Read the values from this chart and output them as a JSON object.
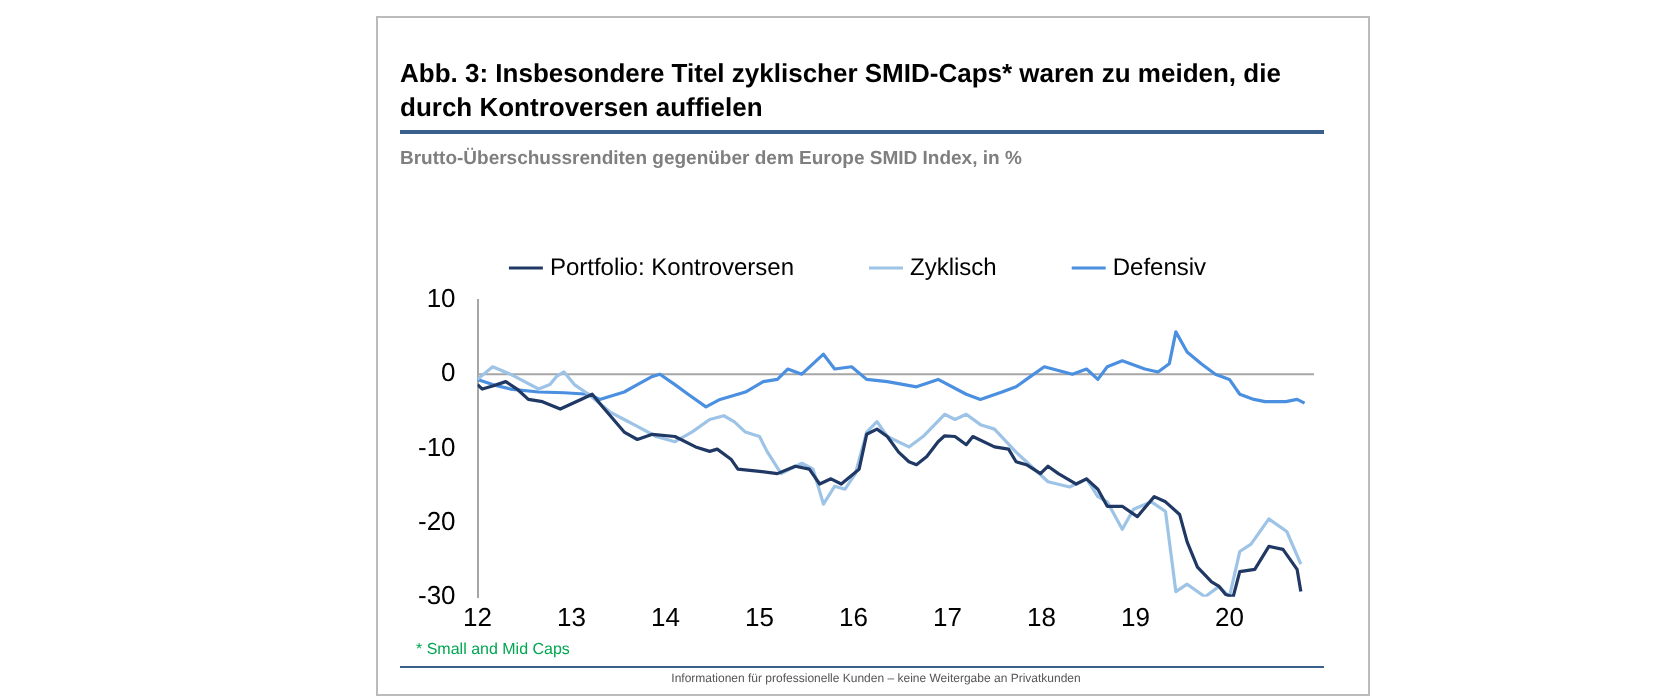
{
  "chart_data": {
    "type": "line",
    "title": "Abb. 3: Insbesondere Titel zyklischer SMID-Caps* waren zu meiden, die durch Kontroversen auffielen",
    "subtitle": "Brutto-Überschussrenditen gegenüber dem Europe SMID Index, in %",
    "annotations": [
      "* Small and Mid Caps",
      "Informationen für professionelle Kunden – keine Weitergabe an Privatkunden"
    ],
    "xlim": [
      12,
      20.9
    ],
    "xticks": [
      12,
      13,
      14,
      15,
      16,
      17,
      18,
      19,
      20
    ],
    "ylim": [
      -30,
      10
    ],
    "yticks": [
      -30,
      -20,
      -10,
      0,
      10
    ],
    "grid": false,
    "legend": "top",
    "marker": "none",
    "line_style": "solid",
    "ref_lines": [
      {
        "axis": "y",
        "value": 0,
        "color": "#a6a6a6"
      }
    ],
    "series": [
      {
        "name": "Portfolio: Kontroversen",
        "color": "#1f3864",
        "x": [
          12.0,
          12.05,
          12.16,
          12.3,
          12.42,
          12.54,
          12.69,
          12.88,
          13.1,
          13.22,
          13.33,
          13.56,
          13.7,
          13.86,
          14.1,
          14.32,
          14.47,
          14.55,
          14.7,
          14.77,
          15.0,
          15.19,
          15.38,
          15.53,
          15.64,
          15.76,
          15.87,
          16.06,
          16.14,
          16.25,
          16.36,
          16.48,
          16.59,
          16.67,
          16.78,
          16.9,
          16.97,
          17.08,
          17.2,
          17.27,
          17.5,
          17.65,
          17.73,
          17.84,
          17.99,
          18.07,
          18.18,
          18.37,
          18.48,
          18.6,
          18.7,
          18.86,
          19.02,
          19.2,
          19.32,
          19.47,
          19.55,
          19.66,
          19.81,
          19.89,
          19.96,
          20.04,
          20.11,
          20.27,
          20.42,
          20.57,
          20.72,
          20.76
        ],
        "values": [
          -1.4,
          -2,
          -1.6,
          -1,
          -2,
          -3.4,
          -3.7,
          -4.7,
          -3.4,
          -2.7,
          -4.4,
          -7.8,
          -8.8,
          -8.1,
          -8.4,
          -9.8,
          -10.4,
          -10.1,
          -11.5,
          -12.8,
          -13.1,
          -13.4,
          -12.4,
          -12.8,
          -14.8,
          -14.1,
          -14.8,
          -12.8,
          -8.1,
          -7.4,
          -8.4,
          -10.5,
          -11.8,
          -12.2,
          -11.1,
          -9.1,
          -8.3,
          -8.4,
          -9.5,
          -8.4,
          -9.8,
          -10.1,
          -11.8,
          -12.2,
          -13.4,
          -12.4,
          -13.4,
          -14.8,
          -14.1,
          -15.5,
          -17.8,
          -17.8,
          -19.2,
          -16.5,
          -17.2,
          -18.9,
          -22.6,
          -26,
          -28,
          -28.6,
          -29.7,
          -30,
          -26.6,
          -26.3,
          -23.2,
          -23.6,
          -26.3,
          -29.3
        ]
      },
      {
        "name": "Zyklisch",
        "color": "#9dc3e6",
        "x": [
          12.0,
          12.16,
          12.35,
          12.5,
          12.65,
          12.77,
          12.84,
          12.92,
          13.03,
          13.18,
          13.41,
          13.56,
          13.71,
          13.9,
          14.1,
          14.28,
          14.47,
          14.62,
          14.73,
          14.85,
          15.0,
          15.08,
          15.23,
          15.45,
          15.57,
          15.68,
          15.8,
          15.91,
          16.02,
          16.14,
          16.25,
          16.36,
          16.59,
          16.74,
          16.97,
          17.08,
          17.2,
          17.35,
          17.5,
          17.73,
          17.84,
          18.07,
          18.3,
          18.48,
          18.6,
          18.7,
          18.86,
          18.98,
          19.17,
          19.32,
          19.43,
          19.55,
          19.74,
          19.89,
          20.0,
          20.11,
          20.23,
          20.42,
          20.61,
          20.76
        ],
        "values": [
          -0.7,
          1,
          0,
          -1,
          -2,
          -1.4,
          -0.3,
          0.3,
          -1.4,
          -2.7,
          -5.1,
          -6.1,
          -7.1,
          -8.4,
          -9.1,
          -7.8,
          -6.1,
          -5.6,
          -6.4,
          -7.8,
          -8.4,
          -10.4,
          -13.4,
          -12,
          -12.8,
          -17.5,
          -15.1,
          -15.5,
          -13.4,
          -7.8,
          -6.4,
          -8.4,
          -9.8,
          -8.4,
          -5.4,
          -6.1,
          -5.4,
          -6.8,
          -7.4,
          -10.5,
          -11.8,
          -14.5,
          -15.2,
          -14.1,
          -16.5,
          -17.2,
          -20.9,
          -18.2,
          -17.2,
          -18.5,
          -29.3,
          -28.3,
          -30,
          -28.6,
          -30,
          -23.9,
          -22.9,
          -19.5,
          -21.2,
          -25.6
        ]
      },
      {
        "name": "Defensiv",
        "color": "#4a8fe0",
        "x": [
          12.0,
          12.16,
          12.35,
          12.65,
          12.92,
          13.18,
          13.3,
          13.56,
          13.7,
          13.86,
          13.94,
          14.1,
          14.24,
          14.43,
          14.58,
          14.85,
          15.04,
          15.19,
          15.3,
          15.45,
          15.68,
          15.8,
          15.98,
          16.14,
          16.36,
          16.67,
          16.9,
          17.2,
          17.35,
          17.58,
          17.73,
          17.84,
          18.03,
          18.33,
          18.48,
          18.6,
          18.7,
          18.86,
          19.1,
          19.24,
          19.36,
          19.43,
          19.55,
          19.7,
          19.85,
          20.0,
          20.11,
          20.26,
          20.38,
          20.6,
          20.72,
          20.8
        ],
        "values": [
          -0.7,
          -1.4,
          -2,
          -2.4,
          -2.5,
          -2.7,
          -3.4,
          -2.4,
          -1.4,
          -0.3,
          0,
          -1.4,
          -2.7,
          -4.4,
          -3.4,
          -2.4,
          -1,
          -0.7,
          0.7,
          0,
          2.7,
          0.7,
          1,
          -0.7,
          -1,
          -1.7,
          -0.7,
          -2.7,
          -3.4,
          -2.4,
          -1.7,
          -0.7,
          1,
          0,
          0.7,
          -0.7,
          1,
          1.8,
          0.7,
          0.3,
          1.4,
          5.7,
          3,
          1.4,
          0,
          -0.7,
          -2.7,
          -3.4,
          -3.7,
          -3.7,
          -3.4,
          -3.9
        ]
      }
    ]
  }
}
